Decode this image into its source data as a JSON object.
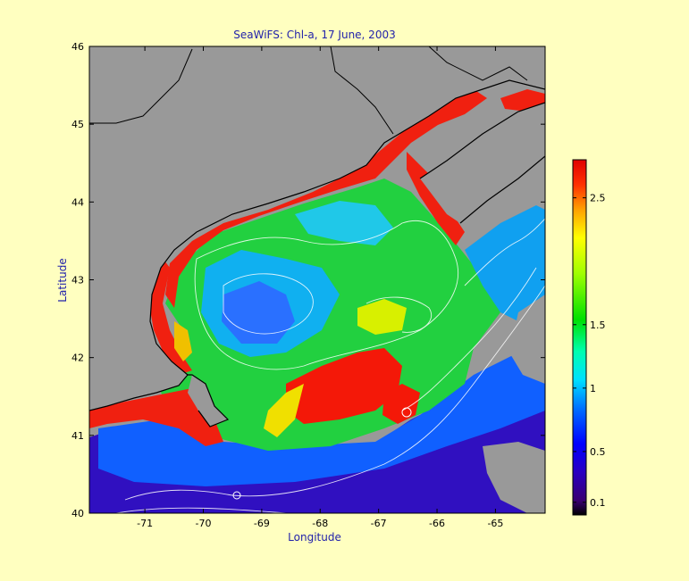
{
  "title": "SeaWiFS: Chl-a, 17 June,  2003",
  "xlabel": "Longitude",
  "ylabel": "Latitude",
  "x_ticks": [
    "-71",
    "-70",
    "-69",
    "-68",
    "-67",
    "-66",
    "-65"
  ],
  "x_tick_values": [
    -71,
    -70,
    -69,
    -68,
    -67,
    -66,
    -65
  ],
  "y_ticks": [
    "40",
    "41",
    "42",
    "43",
    "44",
    "45",
    "46"
  ],
  "y_tick_values": [
    40,
    41,
    42,
    43,
    44,
    45,
    46
  ],
  "xlim": [
    -71.95,
    -64.15
  ],
  "ylim": [
    40,
    46
  ],
  "colorbar": {
    "ticks": [
      "0.1",
      "0.5",
      "1",
      "1.5",
      "2.5"
    ],
    "tick_values": [
      0.1,
      0.5,
      1,
      1.5,
      2.5
    ],
    "range": [
      0,
      2.8
    ]
  },
  "colors": {
    "background": "#FFFFC0",
    "land": "#999999",
    "text": "#2222AA",
    "coast": "#000000",
    "contour": "#FFFFFF"
  }
}
